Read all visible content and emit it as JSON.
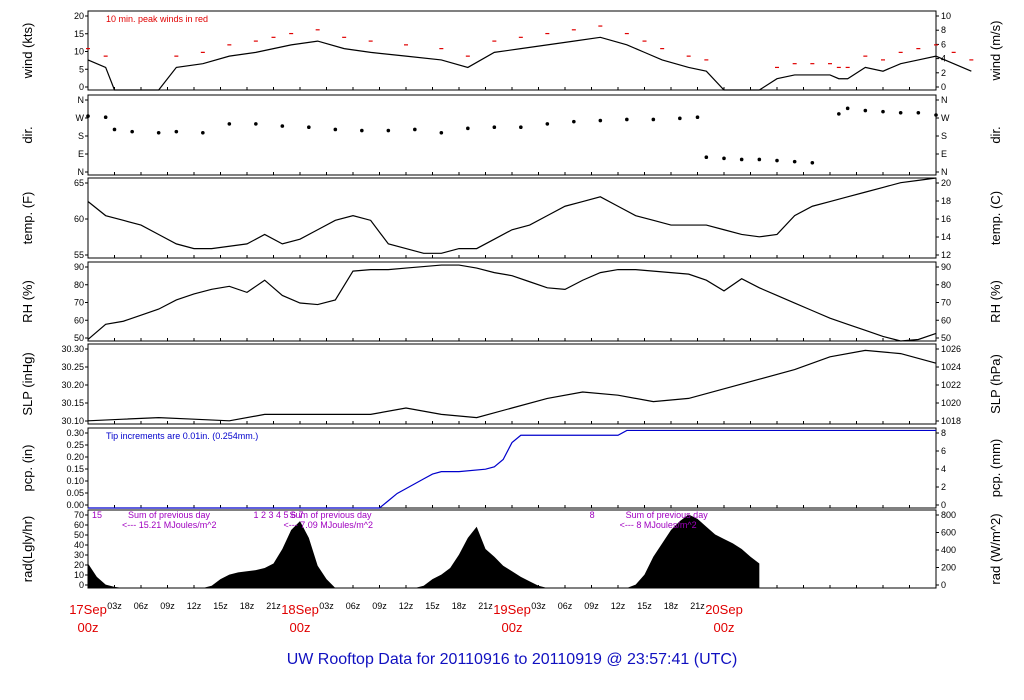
{
  "footer": "UW Rooftop Data for 20110916  to  20110919 @ 23:57:41  (UTC)",
  "colors": {
    "wind_peak": "#e00000",
    "precip": "#0000cc",
    "annotation": "#a000c0",
    "day_label": "#e00000"
  },
  "x_axis": {
    "hour_ticks": [
      "03z",
      "06z",
      "09z",
      "12z",
      "15z",
      "18z",
      "21z",
      "03z",
      "06z",
      "09z",
      "12z",
      "15z",
      "18z",
      "21z",
      "03z",
      "06z",
      "09z",
      "12z",
      "15z",
      "18z",
      "21z"
    ],
    "day_labels": [
      {
        "date": "17Sep",
        "time": "00z"
      },
      {
        "date": "18Sep",
        "time": "00z"
      },
      {
        "date": "19Sep",
        "time": "00z"
      },
      {
        "date": "20Sep",
        "time": "00z"
      }
    ]
  },
  "chart_data": [
    {
      "type": "line",
      "name": "wind",
      "left_label": "wind (kts)",
      "right_label": "wind (m/s)",
      "left_ticks": [
        "0",
        "5",
        "10",
        "15",
        "20"
      ],
      "right_ticks": [
        "0",
        "2",
        "4",
        "6",
        "8",
        "10"
      ],
      "ylim": [
        0,
        21
      ],
      "annotation": "10 min. peak winds in red",
      "x_hours": [
        0,
        2,
        3,
        5,
        8,
        10,
        13,
        16,
        19,
        21,
        23,
        26,
        29,
        32,
        36,
        40,
        43,
        46,
        49,
        52,
        55,
        58,
        61,
        63,
        65,
        68,
        70,
        72,
        74,
        76,
        78,
        80,
        82,
        84,
        85,
        86,
        88,
        90,
        92,
        94,
        96,
        98,
        100
      ],
      "values": [
        8,
        6,
        0,
        0,
        0,
        6,
        7,
        9,
        10,
        11,
        12,
        13,
        11,
        10,
        9,
        8,
        6,
        10,
        11,
        12,
        13,
        14,
        12,
        10,
        8,
        6,
        5,
        0,
        0,
        0,
        3,
        4,
        4,
        4,
        3,
        3,
        6,
        5,
        7,
        8,
        9,
        7,
        5
      ]
    },
    {
      "type": "scatter",
      "name": "dir",
      "left_label": "dir.",
      "right_label": "dir.",
      "left_ticks": [
        "N",
        "E",
        "S",
        "W",
        "N"
      ],
      "right_ticks": [
        "N",
        "E",
        "S",
        "W",
        "N"
      ],
      "ylim": [
        0,
        360
      ],
      "x_hours": [
        0,
        2,
        3,
        5,
        8,
        10,
        13,
        16,
        19,
        22,
        25,
        28,
        31,
        34,
        37,
        40,
        43,
        46,
        49,
        52,
        55,
        58,
        61,
        64,
        67,
        69,
        70,
        72,
        74,
        76,
        78,
        80,
        82,
        85,
        86,
        88,
        90,
        92,
        94,
        96
      ],
      "values": [
        265,
        260,
        205,
        195,
        190,
        195,
        190,
        230,
        230,
        220,
        215,
        205,
        200,
        200,
        205,
        190,
        210,
        215,
        215,
        230,
        240,
        245,
        250,
        250,
        255,
        260,
        80,
        75,
        70,
        70,
        65,
        60,
        55,
        275,
        300,
        290,
        285,
        280,
        280,
        270
      ]
    },
    {
      "type": "line",
      "name": "temp",
      "left_label": "temp. (F)",
      "right_label": "temp. (C)",
      "left_ticks": [
        "55",
        "60",
        "65"
      ],
      "right_ticks": [
        "12",
        "14",
        "16",
        "18",
        "20"
      ],
      "ylim": [
        53,
        70
      ],
      "x_hours": [
        0,
        2,
        4,
        6,
        8,
        10,
        12,
        14,
        16,
        18,
        20,
        22,
        24,
        26,
        28,
        30,
        32,
        34,
        36,
        38,
        40,
        42,
        44,
        46,
        48,
        50,
        52,
        54,
        56,
        58,
        60,
        62,
        64,
        66,
        68,
        70,
        72,
        74,
        76,
        78,
        80,
        82,
        84,
        86,
        88,
        90,
        92,
        94,
        96
      ],
      "values": [
        65,
        62,
        61,
        60,
        58,
        56,
        55,
        55,
        55.5,
        56,
        58,
        56,
        57,
        59,
        61,
        62,
        61,
        56,
        55,
        54,
        54,
        55,
        55,
        57,
        59,
        60,
        62,
        64,
        65,
        66,
        64,
        62,
        61,
        60,
        60,
        60,
        59,
        58,
        57.5,
        58,
        62,
        64,
        65,
        66,
        67,
        68,
        69,
        69.5,
        70
      ]
    },
    {
      "type": "line",
      "name": "rh",
      "left_label": "RH (%)",
      "right_label": "RH (%)",
      "left_ticks": [
        "50",
        "60",
        "70",
        "80",
        "90"
      ],
      "right_ticks": [
        "50",
        "60",
        "70",
        "80",
        "90"
      ],
      "ylim": [
        45,
        97
      ],
      "x_hours": [
        0,
        2,
        4,
        6,
        8,
        10,
        12,
        14,
        16,
        18,
        20,
        22,
        24,
        26,
        28,
        30,
        32,
        34,
        36,
        38,
        40,
        42,
        44,
        46,
        48,
        50,
        52,
        54,
        56,
        58,
        60,
        62,
        64,
        66,
        68,
        70,
        72,
        74,
        76,
        78,
        80,
        82,
        84,
        86,
        88,
        90,
        92,
        94,
        96
      ],
      "values": [
        46,
        56,
        58,
        62,
        66,
        72,
        76,
        79,
        81,
        77,
        85,
        75,
        70,
        69,
        72,
        91,
        92,
        92,
        93,
        94,
        95,
        95,
        93,
        90,
        88,
        84,
        80,
        79,
        85,
        90,
        92,
        92,
        91,
        90,
        89,
        85,
        78,
        86,
        80,
        75,
        70,
        65,
        60,
        56,
        52,
        48,
        45,
        46,
        50
      ]
    },
    {
      "type": "line",
      "name": "slp",
      "left_label": "SLP (inHg)",
      "right_label": "SLP (hPa)",
      "left_ticks": [
        "30.10",
        "30.15",
        "30.20",
        "30.25",
        "30.30"
      ],
      "right_ticks": [
        "1018",
        "1020",
        "1022",
        "1024",
        "1026"
      ],
      "ylim": [
        30.07,
        30.32
      ],
      "x_hours": [
        0,
        4,
        8,
        12,
        16,
        20,
        24,
        28,
        32,
        36,
        40,
        44,
        48,
        52,
        56,
        60,
        64,
        68,
        72,
        76,
        80,
        84,
        88,
        92,
        96
      ],
      "values": [
        30.08,
        30.085,
        30.09,
        30.085,
        30.08,
        30.1,
        30.1,
        30.1,
        30.1,
        30.12,
        30.1,
        30.09,
        30.12,
        30.15,
        30.17,
        30.16,
        30.14,
        30.15,
        30.18,
        30.21,
        30.24,
        30.28,
        30.3,
        30.29,
        30.26
      ]
    },
    {
      "type": "line",
      "name": "pcp",
      "left_label": "pcp. (in)",
      "right_label": "pcp. (mm)",
      "left_ticks": [
        "0.00",
        "0.05",
        "0.10",
        "0.15",
        "0.20",
        "0.25",
        "0.30"
      ],
      "right_ticks": [
        "0",
        "2",
        "4",
        "6",
        "8"
      ],
      "ylim": [
        0,
        0.33
      ],
      "annotation": "Tip increments are 0.01in. (0.254mm.)",
      "x_hours": [
        0,
        33,
        34,
        35,
        36,
        37,
        38,
        39,
        40,
        41,
        42,
        45,
        46,
        47,
        48,
        49,
        50,
        60,
        61,
        62,
        96
      ],
      "values": [
        0,
        0,
        0.03,
        0.06,
        0.08,
        0.1,
        0.12,
        0.14,
        0.15,
        0.15,
        0.15,
        0.16,
        0.17,
        0.2,
        0.27,
        0.3,
        0.3,
        0.3,
        0.32,
        0.32,
        0.32
      ]
    },
    {
      "type": "area",
      "name": "rad",
      "left_label": "rad(Lgly/hr)",
      "right_label": "rad (W/m^2)",
      "left_ticks": [
        "0",
        "10",
        "20",
        "30",
        "40",
        "50",
        "60",
        "70"
      ],
      "right_ticks": [
        "0",
        "200",
        "400",
        "600",
        "800"
      ],
      "ylim": [
        0,
        70
      ],
      "day_sums": [
        {
          "hour_marks": "15",
          "sum_title": "Sum of previous day",
          "sum_value": "<--- 15.21 MJoules/m^2"
        },
        {
          "hour_marks": "1  2  3  4  5  6  7",
          "sum_title": "Sum of previous day",
          "sum_value": "<--- 7.09 MJoules/m^2"
        },
        {
          "hour_marks": "8",
          "sum_title": "Sum of previous day",
          "sum_value": "<--- 8 MJoules/m^2"
        }
      ],
      "x_hours": [
        0,
        1,
        2,
        3,
        4,
        13,
        14,
        15,
        16,
        17,
        18,
        19,
        20,
        21,
        22,
        23,
        24,
        25,
        26,
        27,
        28,
        37,
        38,
        39,
        40,
        41,
        42,
        43,
        44,
        45,
        46,
        47,
        48,
        49,
        50,
        51,
        52,
        61,
        62,
        63,
        64,
        65,
        66,
        67,
        68,
        69,
        70,
        71,
        72,
        73,
        74,
        75,
        76
      ],
      "values": [
        22,
        10,
        3,
        1,
        0,
        0,
        2,
        8,
        12,
        14,
        15,
        16,
        18,
        22,
        35,
        52,
        60,
        45,
        20,
        8,
        0,
        0,
        2,
        8,
        12,
        18,
        30,
        45,
        55,
        35,
        28,
        20,
        15,
        10,
        6,
        2,
        0,
        0,
        3,
        12,
        28,
        40,
        52,
        60,
        66,
        62,
        55,
        48,
        44,
        40,
        35,
        28,
        22
      ]
    }
  ]
}
